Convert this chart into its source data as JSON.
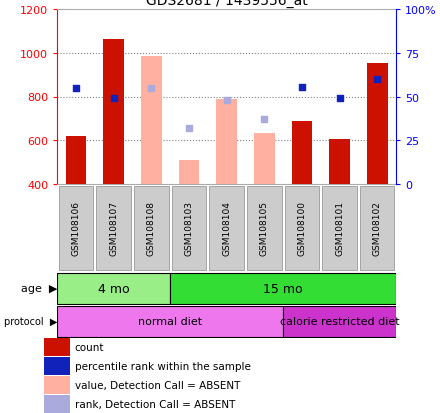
{
  "title": "GDS2681 / 1439556_at",
  "samples": [
    "GSM108106",
    "GSM108107",
    "GSM108108",
    "GSM108103",
    "GSM108104",
    "GSM108105",
    "GSM108100",
    "GSM108101",
    "GSM108102"
  ],
  "count_values": [
    620,
    1065,
    null,
    null,
    null,
    null,
    690,
    605,
    955
  ],
  "count_absent_values": [
    null,
    null,
    985,
    510,
    790,
    635,
    null,
    null,
    null
  ],
  "rank_values": [
    840,
    795,
    null,
    null,
    null,
    null,
    845,
    795,
    880
  ],
  "rank_absent_values": [
    null,
    null,
    840,
    655,
    785,
    695,
    null,
    null,
    null
  ],
  "ylim_left": [
    400,
    1200
  ],
  "ylim_right": [
    0,
    100
  ],
  "yticks_left": [
    400,
    600,
    800,
    1000,
    1200
  ],
  "yticks_right": [
    0,
    25,
    50,
    75,
    100
  ],
  "count_color": "#CC1100",
  "count_absent_color": "#FFB0A0",
  "rank_color": "#1122BB",
  "rank_absent_color": "#AAAADD",
  "age_groups": [
    {
      "label": "4 mo",
      "start": 0,
      "end": 3,
      "color": "#99EE88"
    },
    {
      "label": "15 mo",
      "start": 3,
      "end": 9,
      "color": "#33DD33"
    }
  ],
  "protocol_groups": [
    {
      "label": "normal diet",
      "start": 0,
      "end": 6,
      "color": "#EE77EE"
    },
    {
      "label": "calorie restricted diet",
      "start": 6,
      "end": 9,
      "color": "#CC33CC"
    }
  ],
  "label_count": "count",
  "label_rank": "percentile rank within the sample",
  "label_count_absent": "value, Detection Call = ABSENT",
  "label_rank_absent": "rank, Detection Call = ABSENT"
}
